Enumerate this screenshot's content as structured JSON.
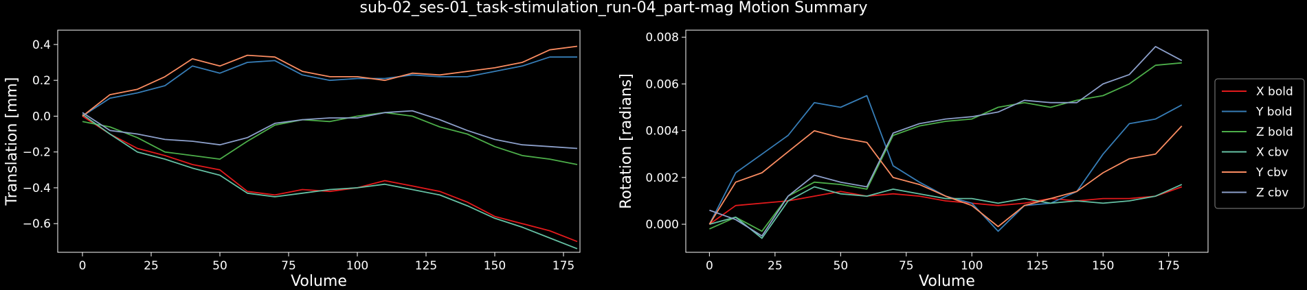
{
  "title": "sub-02_ses-01_task-stimulation_run-04_part-mag Motion Summary",
  "colors": {
    "background": "#000000",
    "foreground": "#ffffff",
    "red": "#e41a1c",
    "blue": "#377eb8",
    "green": "#4daf4a",
    "teal": "#66c2a5",
    "orange": "#fc8d62",
    "lavender": "#8da0cb"
  },
  "legend": {
    "placement": "right",
    "entries": [
      {
        "label": "X bold",
        "color": "#e41a1c"
      },
      {
        "label": "Y bold",
        "color": "#377eb8"
      },
      {
        "label": "Z bold",
        "color": "#4daf4a"
      },
      {
        "label": "X cbv",
        "color": "#66c2a5"
      },
      {
        "label": "Y cbv",
        "color": "#fc8d62"
      },
      {
        "label": "Z cbv",
        "color": "#8da0cb"
      }
    ]
  },
  "chart_data": [
    {
      "type": "line",
      "xlabel": "Volume",
      "ylabel": "Translation [mm]",
      "xlim": [
        -9,
        181
      ],
      "ylim": [
        -0.76,
        0.48
      ],
      "xticks": [
        0,
        25,
        50,
        75,
        100,
        125,
        150,
        175
      ],
      "yticks": [
        -0.6,
        -0.4,
        -0.2,
        0.0,
        0.2,
        0.4
      ],
      "ytick_labels": [
        "−0.6",
        "−0.4",
        "−0.2",
        "0.0",
        "0.2",
        "0.4"
      ],
      "grid": false,
      "x": [
        0,
        10,
        20,
        30,
        40,
        50,
        60,
        70,
        80,
        90,
        100,
        110,
        120,
        130,
        140,
        150,
        160,
        170,
        180
      ],
      "series": [
        {
          "name": "X bold",
          "color": "#e41a1c",
          "values": [
            0.0,
            -0.1,
            -0.18,
            -0.22,
            -0.27,
            -0.3,
            -0.42,
            -0.44,
            -0.41,
            -0.42,
            -0.4,
            -0.36,
            -0.39,
            -0.42,
            -0.48,
            -0.56,
            -0.6,
            -0.64,
            -0.7
          ]
        },
        {
          "name": "Y bold",
          "color": "#377eb8",
          "values": [
            0.0,
            0.1,
            0.13,
            0.17,
            0.28,
            0.24,
            0.3,
            0.31,
            0.23,
            0.2,
            0.21,
            0.21,
            0.23,
            0.22,
            0.22,
            0.25,
            0.28,
            0.33,
            0.33
          ]
        },
        {
          "name": "Z bold",
          "color": "#4daf4a",
          "values": [
            -0.03,
            -0.06,
            -0.12,
            -0.2,
            -0.22,
            -0.24,
            -0.14,
            -0.05,
            -0.02,
            -0.03,
            0.0,
            0.02,
            0.0,
            -0.06,
            -0.1,
            -0.17,
            -0.22,
            -0.24,
            -0.27
          ]
        },
        {
          "name": "X cbv",
          "color": "#66c2a5",
          "values": [
            0.01,
            -0.1,
            -0.2,
            -0.24,
            -0.29,
            -0.33,
            -0.43,
            -0.45,
            -0.43,
            -0.41,
            -0.4,
            -0.38,
            -0.41,
            -0.44,
            -0.5,
            -0.57,
            -0.62,
            -0.68,
            -0.74
          ]
        },
        {
          "name": "Y cbv",
          "color": "#fc8d62",
          "values": [
            0.0,
            0.12,
            0.15,
            0.22,
            0.32,
            0.28,
            0.34,
            0.33,
            0.25,
            0.22,
            0.22,
            0.2,
            0.24,
            0.23,
            0.25,
            0.27,
            0.3,
            0.37,
            0.39
          ]
        },
        {
          "name": "Z cbv",
          "color": "#8da0cb",
          "values": [
            0.02,
            -0.08,
            -0.1,
            -0.13,
            -0.14,
            -0.16,
            -0.12,
            -0.04,
            -0.02,
            -0.01,
            -0.01,
            0.02,
            0.03,
            -0.02,
            -0.08,
            -0.13,
            -0.16,
            -0.17,
            -0.18
          ]
        }
      ]
    },
    {
      "type": "line",
      "xlabel": "Volume",
      "ylabel": "Rotation [radians]",
      "xlim": [
        -9,
        190
      ],
      "ylim": [
        -0.0012,
        0.0083
      ],
      "xticks": [
        0,
        25,
        50,
        75,
        100,
        125,
        150,
        175
      ],
      "yticks": [
        0.0,
        0.002,
        0.004,
        0.006,
        0.008
      ],
      "ytick_labels": [
        "0.000",
        "0.002",
        "0.004",
        "0.006",
        "0.008"
      ],
      "grid": false,
      "x": [
        0,
        10,
        20,
        30,
        40,
        50,
        60,
        70,
        80,
        90,
        100,
        110,
        120,
        130,
        140,
        150,
        160,
        170,
        180
      ],
      "series": [
        {
          "name": "X bold",
          "color": "#e41a1c",
          "values": [
            0.0,
            0.0008,
            0.0009,
            0.001,
            0.0012,
            0.0014,
            0.0012,
            0.0013,
            0.0012,
            0.001,
            0.0009,
            0.0008,
            0.0009,
            0.0011,
            0.001,
            0.0011,
            0.0011,
            0.0012,
            0.0016
          ]
        },
        {
          "name": "Y bold",
          "color": "#377eb8",
          "values": [
            0.0,
            0.0022,
            0.003,
            0.0038,
            0.0052,
            0.005,
            0.0055,
            0.0025,
            0.0018,
            0.0012,
            0.0009,
            -0.0003,
            0.0008,
            0.0009,
            0.0014,
            0.003,
            0.0043,
            0.0045,
            0.0051
          ]
        },
        {
          "name": "Z bold",
          "color": "#4daf4a",
          "values": [
            -0.0002,
            0.0003,
            -0.0003,
            0.0012,
            0.0018,
            0.0017,
            0.0015,
            0.0038,
            0.0042,
            0.0044,
            0.0045,
            0.005,
            0.0052,
            0.005,
            0.0053,
            0.0055,
            0.006,
            0.0068,
            0.0069
          ]
        },
        {
          "name": "X cbv",
          "color": "#66c2a5",
          "values": [
            0.0,
            0.0003,
            -0.0006,
            0.001,
            0.0016,
            0.0013,
            0.0012,
            0.0015,
            0.0013,
            0.0011,
            0.0011,
            0.0009,
            0.0011,
            0.0009,
            0.001,
            0.0009,
            0.001,
            0.0012,
            0.0017
          ]
        },
        {
          "name": "Y cbv",
          "color": "#fc8d62",
          "values": [
            0.0,
            0.0018,
            0.0022,
            0.0031,
            0.004,
            0.0037,
            0.0035,
            0.002,
            0.0017,
            0.0012,
            0.0008,
            -0.0001,
            0.0008,
            0.0011,
            0.0014,
            0.0022,
            0.0028,
            0.003,
            0.0042
          ]
        },
        {
          "name": "Z cbv",
          "color": "#8da0cb",
          "values": [
            0.0006,
            0.0002,
            -0.0005,
            0.0012,
            0.0021,
            0.0018,
            0.0016,
            0.0039,
            0.0043,
            0.0045,
            0.0046,
            0.0048,
            0.0053,
            0.0052,
            0.0052,
            0.006,
            0.0064,
            0.0076,
            0.007
          ]
        }
      ]
    }
  ]
}
